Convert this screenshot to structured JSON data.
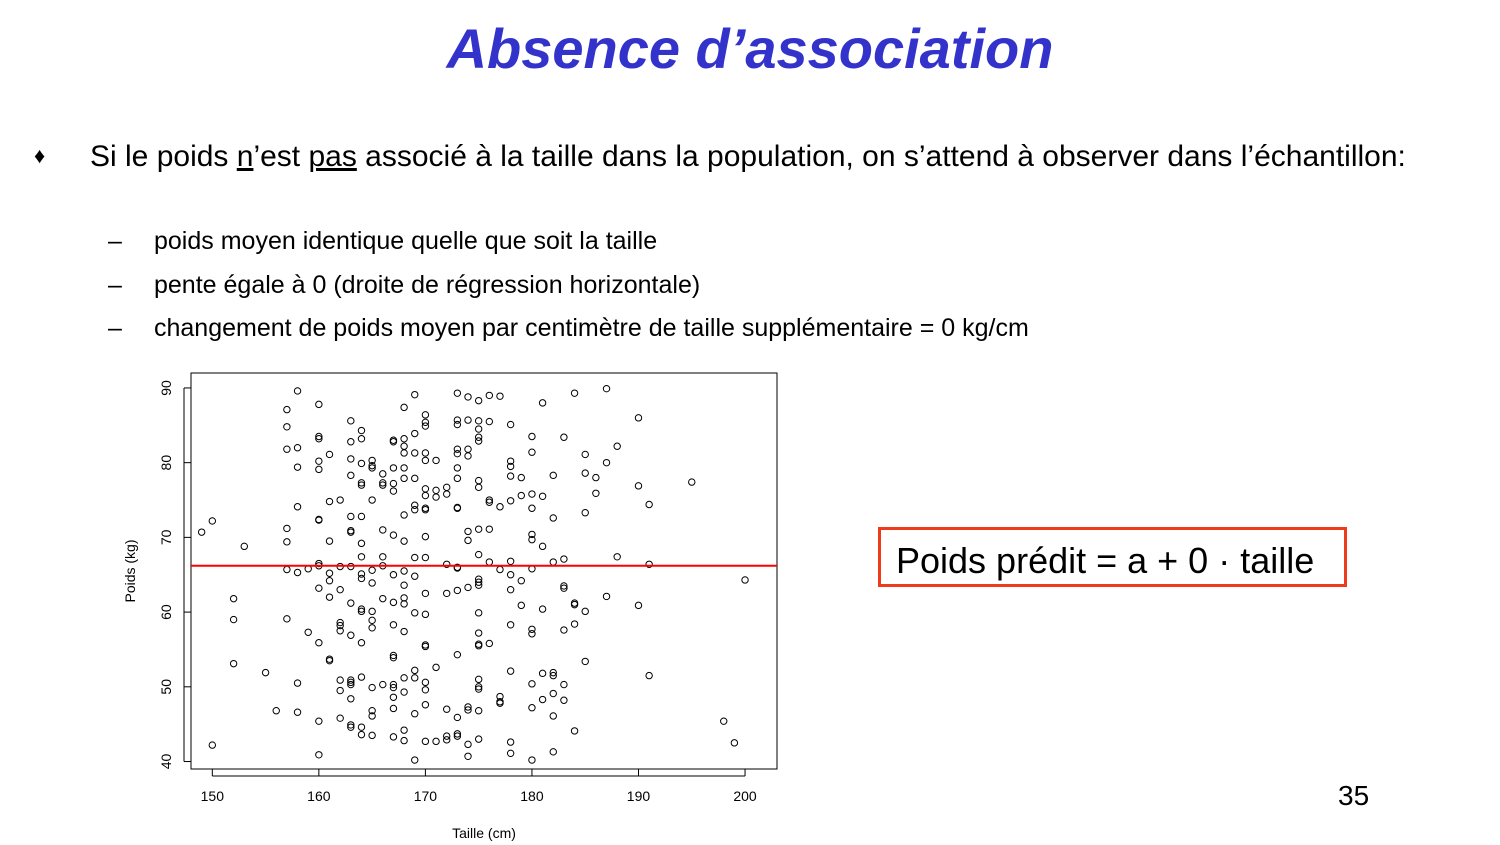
{
  "slide": {
    "title": "Absence d’association",
    "bullet": {
      "marker": "♦",
      "seg1": "Si le poids ",
      "u1": "n",
      "seg2": "’est ",
      "u2": "pas",
      "seg3": " associé à la taille dans la population, on s’attend à observer dans l’échantillon:"
    },
    "sub_dash": "–",
    "sub_items": [
      "poids moyen identique quelle que soit la taille",
      "pente égale à 0 (droite de régression horizontale)",
      "changement de poids moyen par centimètre de taille supplémentaire = 0 kg/cm"
    ],
    "formula": "Poids prédit = a + 0 · taille",
    "page_number": "35",
    "colors": {
      "title": "#3333cc",
      "regression_line": "#ff0000",
      "formula_border": "#ee3b1b"
    }
  },
  "chart_data": {
    "type": "scatter",
    "xlabel": "Taille (cm)",
    "ylabel": "Poids (kg)",
    "xlim": [
      148,
      203
    ],
    "ylim": [
      39,
      92
    ],
    "xticks": [
      150,
      160,
      170,
      180,
      190,
      200
    ],
    "yticks": [
      40,
      50,
      60,
      70,
      80,
      90
    ],
    "marker": "open-circle",
    "grid": false,
    "regression_line": {
      "intercept": 66.2,
      "slope": 0,
      "color": "#ff0000"
    },
    "points": [
      [
        149,
        70.7
      ],
      [
        150,
        72.2
      ],
      [
        150,
        42.2
      ],
      [
        152,
        61.8
      ],
      [
        152,
        59
      ],
      [
        152,
        53.1
      ],
      [
        153,
        68.8
      ],
      [
        155,
        51.9
      ],
      [
        156,
        46.8
      ],
      [
        157,
        87.1
      ],
      [
        157,
        84.8
      ],
      [
        157,
        81.8
      ],
      [
        157,
        71.2
      ],
      [
        157,
        69.4
      ],
      [
        157,
        65.7
      ],
      [
        157,
        59.1
      ],
      [
        158,
        89.6
      ],
      [
        158,
        82
      ],
      [
        158,
        79.4
      ],
      [
        158,
        74.1
      ],
      [
        158,
        65.3
      ],
      [
        158,
        50.5
      ],
      [
        158,
        46.6
      ],
      [
        159,
        65.8
      ],
      [
        159,
        57.3
      ],
      [
        160,
        87.8
      ],
      [
        160,
        83.5
      ],
      [
        160,
        83.2
      ],
      [
        160,
        80.2
      ],
      [
        160,
        79.1
      ],
      [
        160,
        72.4
      ],
      [
        160,
        72.3
      ],
      [
        160,
        66.5
      ],
      [
        160,
        66.2
      ],
      [
        160,
        63.2
      ],
      [
        160,
        55.9
      ],
      [
        160,
        45.4
      ],
      [
        160,
        40.9
      ],
      [
        161,
        81.1
      ],
      [
        161,
        74.8
      ],
      [
        161,
        69.5
      ],
      [
        161,
        65.2
      ],
      [
        161,
        64.2
      ],
      [
        161,
        62
      ],
      [
        161,
        53.7
      ],
      [
        161,
        53.5
      ],
      [
        162,
        75
      ],
      [
        162,
        66.1
      ],
      [
        162,
        63
      ],
      [
        162,
        58.6
      ],
      [
        162,
        58.2
      ],
      [
        162,
        57.5
      ],
      [
        162,
        50.9
      ],
      [
        162,
        49.5
      ],
      [
        162,
        45.8
      ],
      [
        163,
        85.6
      ],
      [
        163,
        82.8
      ],
      [
        163,
        80.5
      ],
      [
        163,
        78.3
      ],
      [
        163,
        72.8
      ],
      [
        163,
        70.9
      ],
      [
        163,
        70.7
      ],
      [
        163,
        66.1
      ],
      [
        163,
        61.2
      ],
      [
        163,
        56.9
      ],
      [
        163,
        50.9
      ],
      [
        163,
        50.6
      ],
      [
        163,
        50.3
      ],
      [
        163,
        48.4
      ],
      [
        163,
        44.9
      ],
      [
        163,
        44.6
      ],
      [
        164,
        84.3
      ],
      [
        164,
        83.2
      ],
      [
        164,
        79.9
      ],
      [
        164,
        77.3
      ],
      [
        164,
        77
      ],
      [
        164,
        72.8
      ],
      [
        164,
        69.2
      ],
      [
        164,
        67.4
      ],
      [
        164,
        65.1
      ],
      [
        164,
        64.5
      ],
      [
        164,
        60.4
      ],
      [
        164,
        60.1
      ],
      [
        164,
        55.9
      ],
      [
        164,
        51.3
      ],
      [
        164,
        44.6
      ],
      [
        164,
        43.6
      ],
      [
        165,
        80.3
      ],
      [
        165,
        79.6
      ],
      [
        165,
        79.3
      ],
      [
        165,
        75
      ],
      [
        165,
        65.6
      ],
      [
        165,
        63.9
      ],
      [
        165,
        60.1
      ],
      [
        165,
        58.9
      ],
      [
        165,
        57.9
      ],
      [
        165,
        49.9
      ],
      [
        165,
        46.8
      ],
      [
        165,
        46.1
      ],
      [
        165,
        43.5
      ],
      [
        166,
        78.5
      ],
      [
        166,
        77.3
      ],
      [
        166,
        77
      ],
      [
        166,
        71
      ],
      [
        166,
        67.4
      ],
      [
        166,
        66.2
      ],
      [
        166,
        61.8
      ],
      [
        166,
        50.3
      ],
      [
        167,
        83
      ],
      [
        167,
        82.8
      ],
      [
        167,
        79.3
      ],
      [
        167,
        77.2
      ],
      [
        167,
        76.2
      ],
      [
        167,
        70.3
      ],
      [
        167,
        65
      ],
      [
        167,
        61.3
      ],
      [
        167,
        58.3
      ],
      [
        167,
        54.2
      ],
      [
        167,
        53.9
      ],
      [
        167,
        50.3
      ],
      [
        167,
        49.9
      ],
      [
        167,
        48.6
      ],
      [
        167,
        47.1
      ],
      [
        167,
        43.3
      ],
      [
        168,
        87.4
      ],
      [
        168,
        83.2
      ],
      [
        168,
        82.2
      ],
      [
        168,
        81.3
      ],
      [
        168,
        79.3
      ],
      [
        168,
        77.9
      ],
      [
        168,
        73
      ],
      [
        168,
        69.5
      ],
      [
        168,
        65.5
      ],
      [
        168,
        63.6
      ],
      [
        168,
        61.9
      ],
      [
        168,
        61.1
      ],
      [
        168,
        57.4
      ],
      [
        168,
        51.2
      ],
      [
        168,
        49.3
      ],
      [
        168,
        44.2
      ],
      [
        168,
        42.8
      ],
      [
        169,
        89.1
      ],
      [
        169,
        83.9
      ],
      [
        169,
        81.3
      ],
      [
        169,
        77.9
      ],
      [
        169,
        74.3
      ],
      [
        169,
        73.7
      ],
      [
        169,
        67.3
      ],
      [
        169,
        64.8
      ],
      [
        169,
        59.9
      ],
      [
        169,
        52.2
      ],
      [
        169,
        51.2
      ],
      [
        169,
        46.4
      ],
      [
        169,
        40.2
      ],
      [
        170,
        86.4
      ],
      [
        170,
        85.4
      ],
      [
        170,
        84.9
      ],
      [
        170,
        81.3
      ],
      [
        170,
        80.3
      ],
      [
        170,
        76.5
      ],
      [
        170,
        75.6
      ],
      [
        170,
        73.9
      ],
      [
        170,
        73.7
      ],
      [
        170,
        70.1
      ],
      [
        170,
        67.3
      ],
      [
        170,
        62.5
      ],
      [
        170,
        59.7
      ],
      [
        170,
        55.6
      ],
      [
        170,
        55.4
      ],
      [
        170,
        50.6
      ],
      [
        170,
        49.6
      ],
      [
        170,
        47.6
      ],
      [
        170,
        42.7
      ],
      [
        171,
        80.3
      ],
      [
        171,
        76.3
      ],
      [
        171,
        75.4
      ],
      [
        171,
        52.6
      ],
      [
        171,
        42.7
      ],
      [
        172,
        76.7
      ],
      [
        172,
        75.8
      ],
      [
        172,
        66.4
      ],
      [
        172,
        62.5
      ],
      [
        172,
        47
      ],
      [
        172,
        43.4
      ],
      [
        172,
        42.9
      ],
      [
        173,
        89.3
      ],
      [
        173,
        85.7
      ],
      [
        173,
        85.1
      ],
      [
        173,
        81.8
      ],
      [
        173,
        81.2
      ],
      [
        173,
        79.3
      ],
      [
        173,
        77.9
      ],
      [
        173,
        74
      ],
      [
        173,
        73.9
      ],
      [
        173,
        66
      ],
      [
        173,
        65.9
      ],
      [
        173,
        62.9
      ],
      [
        173,
        54.3
      ],
      [
        173,
        45.9
      ],
      [
        173,
        43.7
      ],
      [
        173,
        43.4
      ],
      [
        174,
        88.8
      ],
      [
        174,
        85.7
      ],
      [
        174,
        81.8
      ],
      [
        174,
        80.9
      ],
      [
        174,
        70.8
      ],
      [
        174,
        69.6
      ],
      [
        174,
        63.3
      ],
      [
        174,
        47.3
      ],
      [
        174,
        46.9
      ],
      [
        174,
        42.3
      ],
      [
        174,
        40.7
      ],
      [
        175,
        88.3
      ],
      [
        175,
        85.6
      ],
      [
        175,
        84.5
      ],
      [
        175,
        83.4
      ],
      [
        175,
        82.9
      ],
      [
        175,
        77.6
      ],
      [
        175,
        76.7
      ],
      [
        175,
        71.1
      ],
      [
        175,
        67.7
      ],
      [
        175,
        64.4
      ],
      [
        175,
        64
      ],
      [
        175,
        63.6
      ],
      [
        175,
        59.9
      ],
      [
        175,
        57.2
      ],
      [
        175,
        55.7
      ],
      [
        175,
        55.5
      ],
      [
        175,
        51
      ],
      [
        175,
        50
      ],
      [
        175,
        49.7
      ],
      [
        175,
        46.8
      ],
      [
        175,
        43
      ],
      [
        176,
        89
      ],
      [
        176,
        85.5
      ],
      [
        176,
        75
      ],
      [
        176,
        74.7
      ],
      [
        176,
        71.1
      ],
      [
        176,
        66.7
      ],
      [
        176,
        55.8
      ],
      [
        177,
        88.9
      ],
      [
        177,
        74.1
      ],
      [
        177,
        65.7
      ],
      [
        177,
        48.7
      ],
      [
        177,
        47.8
      ],
      [
        177,
        48
      ],
      [
        178,
        85.1
      ],
      [
        178,
        80.2
      ],
      [
        178,
        79.5
      ],
      [
        178,
        78.2
      ],
      [
        178,
        74.9
      ],
      [
        178,
        66.8
      ],
      [
        178,
        65
      ],
      [
        178,
        63
      ],
      [
        178,
        58.3
      ],
      [
        178,
        52.1
      ],
      [
        178,
        42.6
      ],
      [
        178,
        41.1
      ],
      [
        179,
        78
      ],
      [
        179,
        75.6
      ],
      [
        179,
        64.2
      ],
      [
        179,
        60.9
      ],
      [
        180,
        83.5
      ],
      [
        180,
        81.4
      ],
      [
        180,
        75.8
      ],
      [
        180,
        73.9
      ],
      [
        180,
        70.4
      ],
      [
        180,
        69.7
      ],
      [
        180,
        65.8
      ],
      [
        180,
        57.7
      ],
      [
        180,
        57.1
      ],
      [
        180,
        50.4
      ],
      [
        180,
        47.2
      ],
      [
        180,
        40.2
      ],
      [
        181,
        88
      ],
      [
        181,
        75.5
      ],
      [
        181,
        68.8
      ],
      [
        181,
        60.4
      ],
      [
        181,
        51.8
      ],
      [
        181,
        48.3
      ],
      [
        182,
        78.3
      ],
      [
        182,
        72.6
      ],
      [
        182,
        66.7
      ],
      [
        182,
        51.9
      ],
      [
        182,
        51.5
      ],
      [
        182,
        49.1
      ],
      [
        182,
        46.1
      ],
      [
        182,
        41.3
      ],
      [
        183,
        83.4
      ],
      [
        183,
        67.1
      ],
      [
        183,
        63.5
      ],
      [
        183,
        63.2
      ],
      [
        183,
        57.6
      ],
      [
        183,
        50.3
      ],
      [
        183,
        48.2
      ],
      [
        184,
        89.3
      ],
      [
        184,
        61.2
      ],
      [
        184,
        61
      ],
      [
        184,
        58.4
      ],
      [
        184,
        44.1
      ],
      [
        185,
        81.1
      ],
      [
        185,
        78.6
      ],
      [
        185,
        73.3
      ],
      [
        185,
        60.1
      ],
      [
        185,
        53.4
      ],
      [
        186,
        78
      ],
      [
        186,
        75.9
      ],
      [
        187,
        89.9
      ],
      [
        187,
        80
      ],
      [
        187,
        62.1
      ],
      [
        188,
        82.2
      ],
      [
        188,
        67.4
      ],
      [
        190,
        86
      ],
      [
        190,
        76.9
      ],
      [
        190,
        60.9
      ],
      [
        191,
        74.4
      ],
      [
        191,
        66.4
      ],
      [
        191,
        51.5
      ],
      [
        195,
        77.4
      ],
      [
        198,
        45.4
      ],
      [
        199,
        42.5
      ],
      [
        200,
        64.3
      ]
    ]
  }
}
